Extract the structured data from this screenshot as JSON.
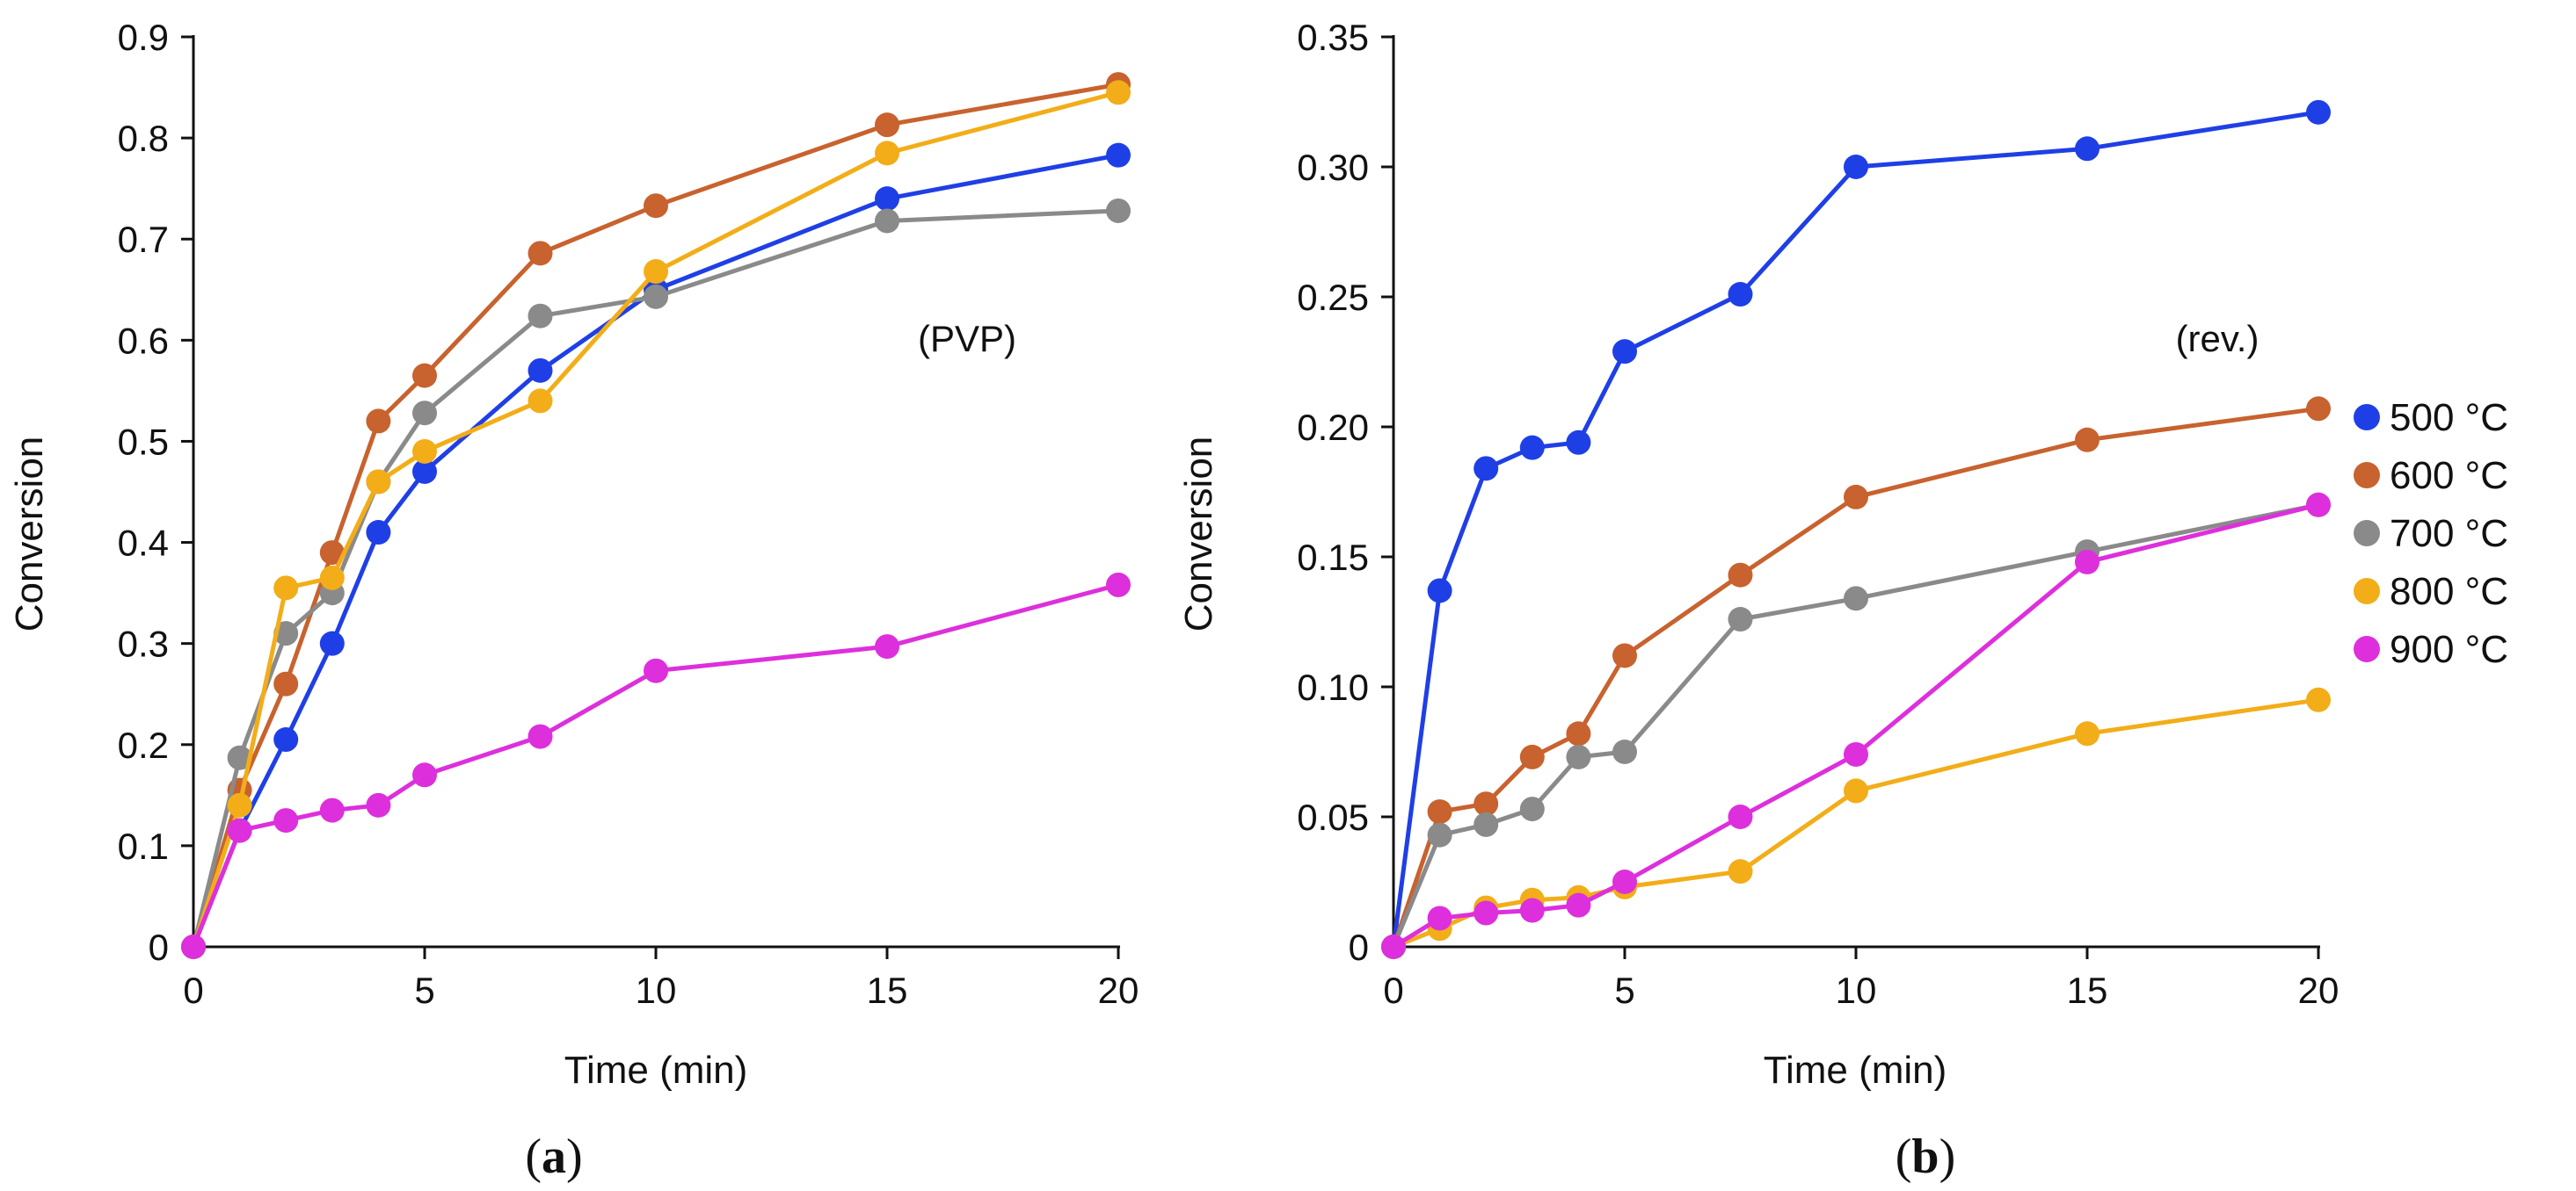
{
  "colors": {
    "500": "#1f3fe6",
    "600": "#c8622e",
    "700": "#8a8a8a",
    "800": "#f2ad18",
    "900": "#dd2fdc",
    "axis": "#111111"
  },
  "legend": [
    {
      "key": "500",
      "label": "500 °C"
    },
    {
      "key": "600",
      "label": "600 °C"
    },
    {
      "key": "700",
      "label": "700 °C"
    },
    {
      "key": "800",
      "label": "800 °C"
    },
    {
      "key": "900",
      "label": "900 °C"
    }
  ],
  "chart_data": [
    {
      "id": "a",
      "type": "line",
      "panel_label": {
        "open": "(",
        "letter": "a",
        "close": ")"
      },
      "annotation": "(PVP)",
      "xlabel": "Time (min)",
      "ylabel": "Conversion",
      "xlim": [
        0,
        20
      ],
      "ylim": [
        0,
        0.9
      ],
      "xticks": [
        0,
        5,
        10,
        15,
        20
      ],
      "xtick_labels": [
        "0",
        "5",
        "10",
        "15",
        "20"
      ],
      "yticks": [
        0,
        0.1,
        0.2,
        0.3,
        0.4,
        0.5,
        0.6,
        0.7,
        0.8,
        0.9
      ],
      "ytick_labels": [
        "0",
        "0.1",
        "0.2",
        "0.3",
        "0.4",
        "0.5",
        "0.6",
        "0.7",
        "0.8",
        "0.9"
      ],
      "x": [
        0,
        1,
        2,
        3,
        4,
        5,
        7.5,
        10,
        15,
        20
      ],
      "series": [
        {
          "name": "500 °C",
          "key": "500",
          "values": [
            0,
            0.115,
            0.205,
            0.3,
            0.41,
            0.47,
            0.57,
            0.65,
            0.74,
            0.783
          ]
        },
        {
          "name": "600 °C",
          "key": "600",
          "values": [
            0,
            0.155,
            0.26,
            0.39,
            0.52,
            0.565,
            0.686,
            0.733,
            0.813,
            0.853
          ]
        },
        {
          "name": "700 °C",
          "key": "700",
          "values": [
            0,
            0.187,
            0.31,
            0.35,
            0.46,
            0.528,
            0.624,
            0.643,
            0.718,
            0.728
          ]
        },
        {
          "name": "800 °C",
          "key": "800",
          "values": [
            0,
            0.14,
            0.355,
            0.365,
            0.46,
            0.49,
            0.54,
            0.668,
            0.785,
            0.845
          ]
        },
        {
          "name": "900 °C",
          "key": "900",
          "values": [
            0,
            0.115,
            0.125,
            0.135,
            0.14,
            0.17,
            0.208,
            0.273,
            0.297,
            0.358
          ]
        }
      ]
    },
    {
      "id": "b",
      "type": "line",
      "panel_label": {
        "open": "(",
        "letter": "b",
        "close": ")"
      },
      "annotation": "(rev.)",
      "xlabel": "Time (min)",
      "ylabel": "Conversion",
      "xlim": [
        0,
        20
      ],
      "ylim": [
        0,
        0.35
      ],
      "xticks": [
        0,
        5,
        10,
        15,
        20
      ],
      "xtick_labels": [
        "0",
        "5",
        "10",
        "15",
        "20"
      ],
      "yticks": [
        0,
        0.05,
        0.1,
        0.15,
        0.2,
        0.25,
        0.3,
        0.35
      ],
      "ytick_labels": [
        "0",
        "0.05",
        "0.10",
        "0.15",
        "0.20",
        "0.25",
        "0.30",
        "0.35"
      ],
      "x": [
        0,
        1,
        2,
        3,
        4,
        5,
        7.5,
        10,
        15,
        20
      ],
      "series": [
        {
          "name": "500 °C",
          "key": "500",
          "values": [
            0,
            0.137,
            0.184,
            0.192,
            0.194,
            0.229,
            0.251,
            0.3,
            0.307,
            0.321
          ]
        },
        {
          "name": "600 °C",
          "key": "600",
          "values": [
            0,
            0.052,
            0.055,
            0.073,
            0.082,
            0.112,
            0.143,
            0.173,
            0.195,
            0.207
          ]
        },
        {
          "name": "700 °C",
          "key": "700",
          "values": [
            0,
            0.043,
            0.047,
            0.053,
            0.073,
            0.075,
            0.126,
            0.134,
            0.152,
            0.17
          ]
        },
        {
          "name": "800 °C",
          "key": "800",
          "values": [
            0,
            0.007,
            0.015,
            0.018,
            0.019,
            0.023,
            0.029,
            0.06,
            0.082,
            0.095
          ]
        },
        {
          "name": "900 °C",
          "key": "900",
          "values": [
            0,
            0.011,
            0.013,
            0.014,
            0.016,
            0.025,
            0.05,
            0.074,
            0.148,
            0.17
          ]
        }
      ]
    }
  ]
}
